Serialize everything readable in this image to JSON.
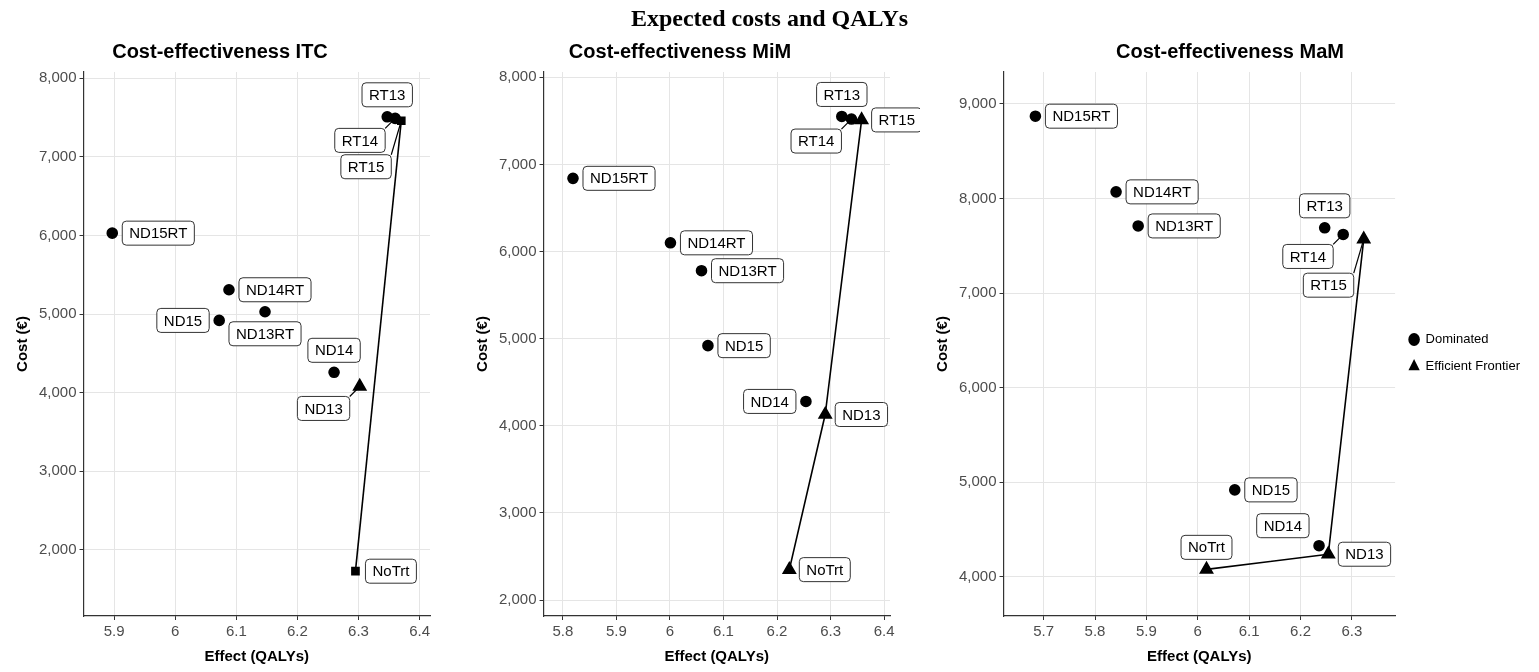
{
  "chart_data": [
    {
      "type": "other",
      "title": "Expected costs and QALYs"
    },
    {
      "type": "scatter",
      "title": "Cost-effectiveness ITC",
      "xlabel": "Effect (QALYs)",
      "ylabel": "Cost (€)",
      "grid": true,
      "legend": false,
      "xlim": [
        5.85,
        6.417
      ],
      "xticks": [
        5.9,
        6,
        6.1,
        6.2,
        6.3,
        6.4
      ],
      "ylim": [
        1160,
        8080
      ],
      "yticks": [
        {
          "value": 2000,
          "label": "2,000"
        },
        {
          "value": 3000,
          "label": "3,000"
        },
        {
          "value": 4000,
          "label": "4,000"
        },
        {
          "value": 5000,
          "label": "5,000"
        },
        {
          "value": 6000,
          "label": "6,000"
        },
        {
          "value": 7000,
          "label": "7,000"
        },
        {
          "value": 8000,
          "label": "8,000"
        }
      ],
      "series": [
        {
          "type": "scatter",
          "marker": "circle",
          "color": "#000000",
          "x": [
            5.897,
            6.088,
            6.147,
            6.072,
            6.26,
            6.347,
            6.36
          ],
          "values": [
            6030,
            5310,
            5030,
            4920,
            4260,
            7510,
            7490
          ]
        },
        {
          "type": "line",
          "marker": "square",
          "color": "#000000",
          "x": [
            6.295,
            6.37
          ],
          "values": [
            1730,
            7460
          ]
        },
        {
          "type": "scatter",
          "marker": "triangle",
          "color": "#000000",
          "x": [
            6.302
          ],
          "values": [
            4080
          ]
        }
      ],
      "annotations": [
        {
          "text": "ND15RT",
          "x": 5.897,
          "y": 6030
        },
        {
          "text": "ND14RT",
          "x": 6.088,
          "y": 5310
        },
        {
          "text": "ND13RT",
          "x": 6.147,
          "y": 5030
        },
        {
          "text": "ND15",
          "x": 6.072,
          "y": 4920
        },
        {
          "text": "ND14",
          "x": 6.26,
          "y": 4260
        },
        {
          "text": "ND13",
          "x": 6.302,
          "y": 4080
        },
        {
          "text": "RT13",
          "x": 6.347,
          "y": 7510
        },
        {
          "text": "RT14",
          "x": 6.36,
          "y": 7490
        },
        {
          "text": "RT15",
          "x": 6.37,
          "y": 7460
        },
        {
          "text": "NoTrt",
          "x": 6.295,
          "y": 1730
        }
      ]
    },
    {
      "type": "scatter",
      "title": "Cost-effectiveness MiM",
      "xlabel": "Effect (QALYs)",
      "ylabel": "Cost (€)",
      "grid": true,
      "legend": false,
      "xlim": [
        5.764,
        6.411
      ],
      "xticks": [
        5.8,
        5.9,
        6,
        6.1,
        6.2,
        6.3,
        6.4
      ],
      "ylim": [
        1818,
        8060
      ],
      "yticks": [
        {
          "value": 2000,
          "label": "2,000"
        },
        {
          "value": 3000,
          "label": "3,000"
        },
        {
          "value": 4000,
          "label": "4,000"
        },
        {
          "value": 5000,
          "label": "5,000"
        },
        {
          "value": 6000,
          "label": "6,000"
        },
        {
          "value": 7000,
          "label": "7,000"
        },
        {
          "value": 8000,
          "label": "8,000"
        }
      ],
      "series": [
        {
          "type": "scatter",
          "marker": "circle",
          "color": "#000000",
          "x": [
            5.819,
            6.001,
            6.059,
            6.071,
            6.254,
            6.321,
            6.339
          ],
          "values": [
            6840,
            6100,
            5780,
            4920,
            4280,
            7550,
            7520
          ]
        },
        {
          "type": "line",
          "marker": "triangle",
          "color": "#000000",
          "x": [
            6.223,
            6.29,
            6.358
          ],
          "values": [
            2350,
            4130,
            7510
          ]
        }
      ],
      "annotations": [
        {
          "text": "ND15RT",
          "x": 5.819,
          "y": 6840
        },
        {
          "text": "ND14RT",
          "x": 6.001,
          "y": 6100
        },
        {
          "text": "ND13RT",
          "x": 6.059,
          "y": 5780
        },
        {
          "text": "ND15",
          "x": 6.071,
          "y": 4920
        },
        {
          "text": "ND14",
          "x": 6.254,
          "y": 4280
        },
        {
          "text": "ND13",
          "x": 6.29,
          "y": 4130
        },
        {
          "text": "RT13",
          "x": 6.321,
          "y": 7550
        },
        {
          "text": "RT14",
          "x": 6.339,
          "y": 7520
        },
        {
          "text": "RT15",
          "x": 6.358,
          "y": 7510
        },
        {
          "text": "NoTrt",
          "x": 6.223,
          "y": 2350
        }
      ]
    },
    {
      "type": "scatter",
      "title": "Cost-effectiveness MaM",
      "xlabel": "Effect (QALYs)",
      "ylabel": "Cost (€)",
      "grid": true,
      "legend": "right",
      "xlim": [
        5.622,
        6.384
      ],
      "xticks": [
        5.7,
        5.8,
        5.9,
        6,
        6.1,
        6.2,
        6.3
      ],
      "ylim": [
        3587,
        9337
      ],
      "yticks": [
        {
          "value": 4000,
          "label": "4,000"
        },
        {
          "value": 5000,
          "label": "5,000"
        },
        {
          "value": 6000,
          "label": "6,000"
        },
        {
          "value": 7000,
          "label": "7,000"
        },
        {
          "value": 8000,
          "label": "8,000"
        },
        {
          "value": 9000,
          "label": "9,000"
        }
      ],
      "series": [
        {
          "name": "Dominated",
          "type": "scatter",
          "marker": "circle",
          "color": "#000000",
          "x": [
            5.684,
            5.841,
            5.884,
            6.072,
            6.236,
            6.247,
            6.283
          ],
          "values": [
            8870,
            8070,
            7710,
            4920,
            4330,
            7690,
            7620
          ]
        },
        {
          "name": "Efficient Frontier",
          "type": "line",
          "marker": "triangle",
          "color": "#000000",
          "x": [
            6.017,
            6.254,
            6.323
          ],
          "values": [
            4080,
            4240,
            7570
          ]
        }
      ],
      "annotations": [
        {
          "text": "ND15RT",
          "x": 5.684,
          "y": 8870
        },
        {
          "text": "ND14RT",
          "x": 5.841,
          "y": 8070
        },
        {
          "text": "ND13RT",
          "x": 5.884,
          "y": 7710
        },
        {
          "text": "ND15",
          "x": 6.072,
          "y": 4920
        },
        {
          "text": "ND14",
          "x": 6.236,
          "y": 4330
        },
        {
          "text": "ND13",
          "x": 6.254,
          "y": 4240
        },
        {
          "text": "RT13",
          "x": 6.247,
          "y": 7690
        },
        {
          "text": "RT14",
          "x": 6.283,
          "y": 7620
        },
        {
          "text": "RT15",
          "x": 6.323,
          "y": 7570
        },
        {
          "text": "NoTrt",
          "x": 6.017,
          "y": 4080
        }
      ]
    }
  ]
}
